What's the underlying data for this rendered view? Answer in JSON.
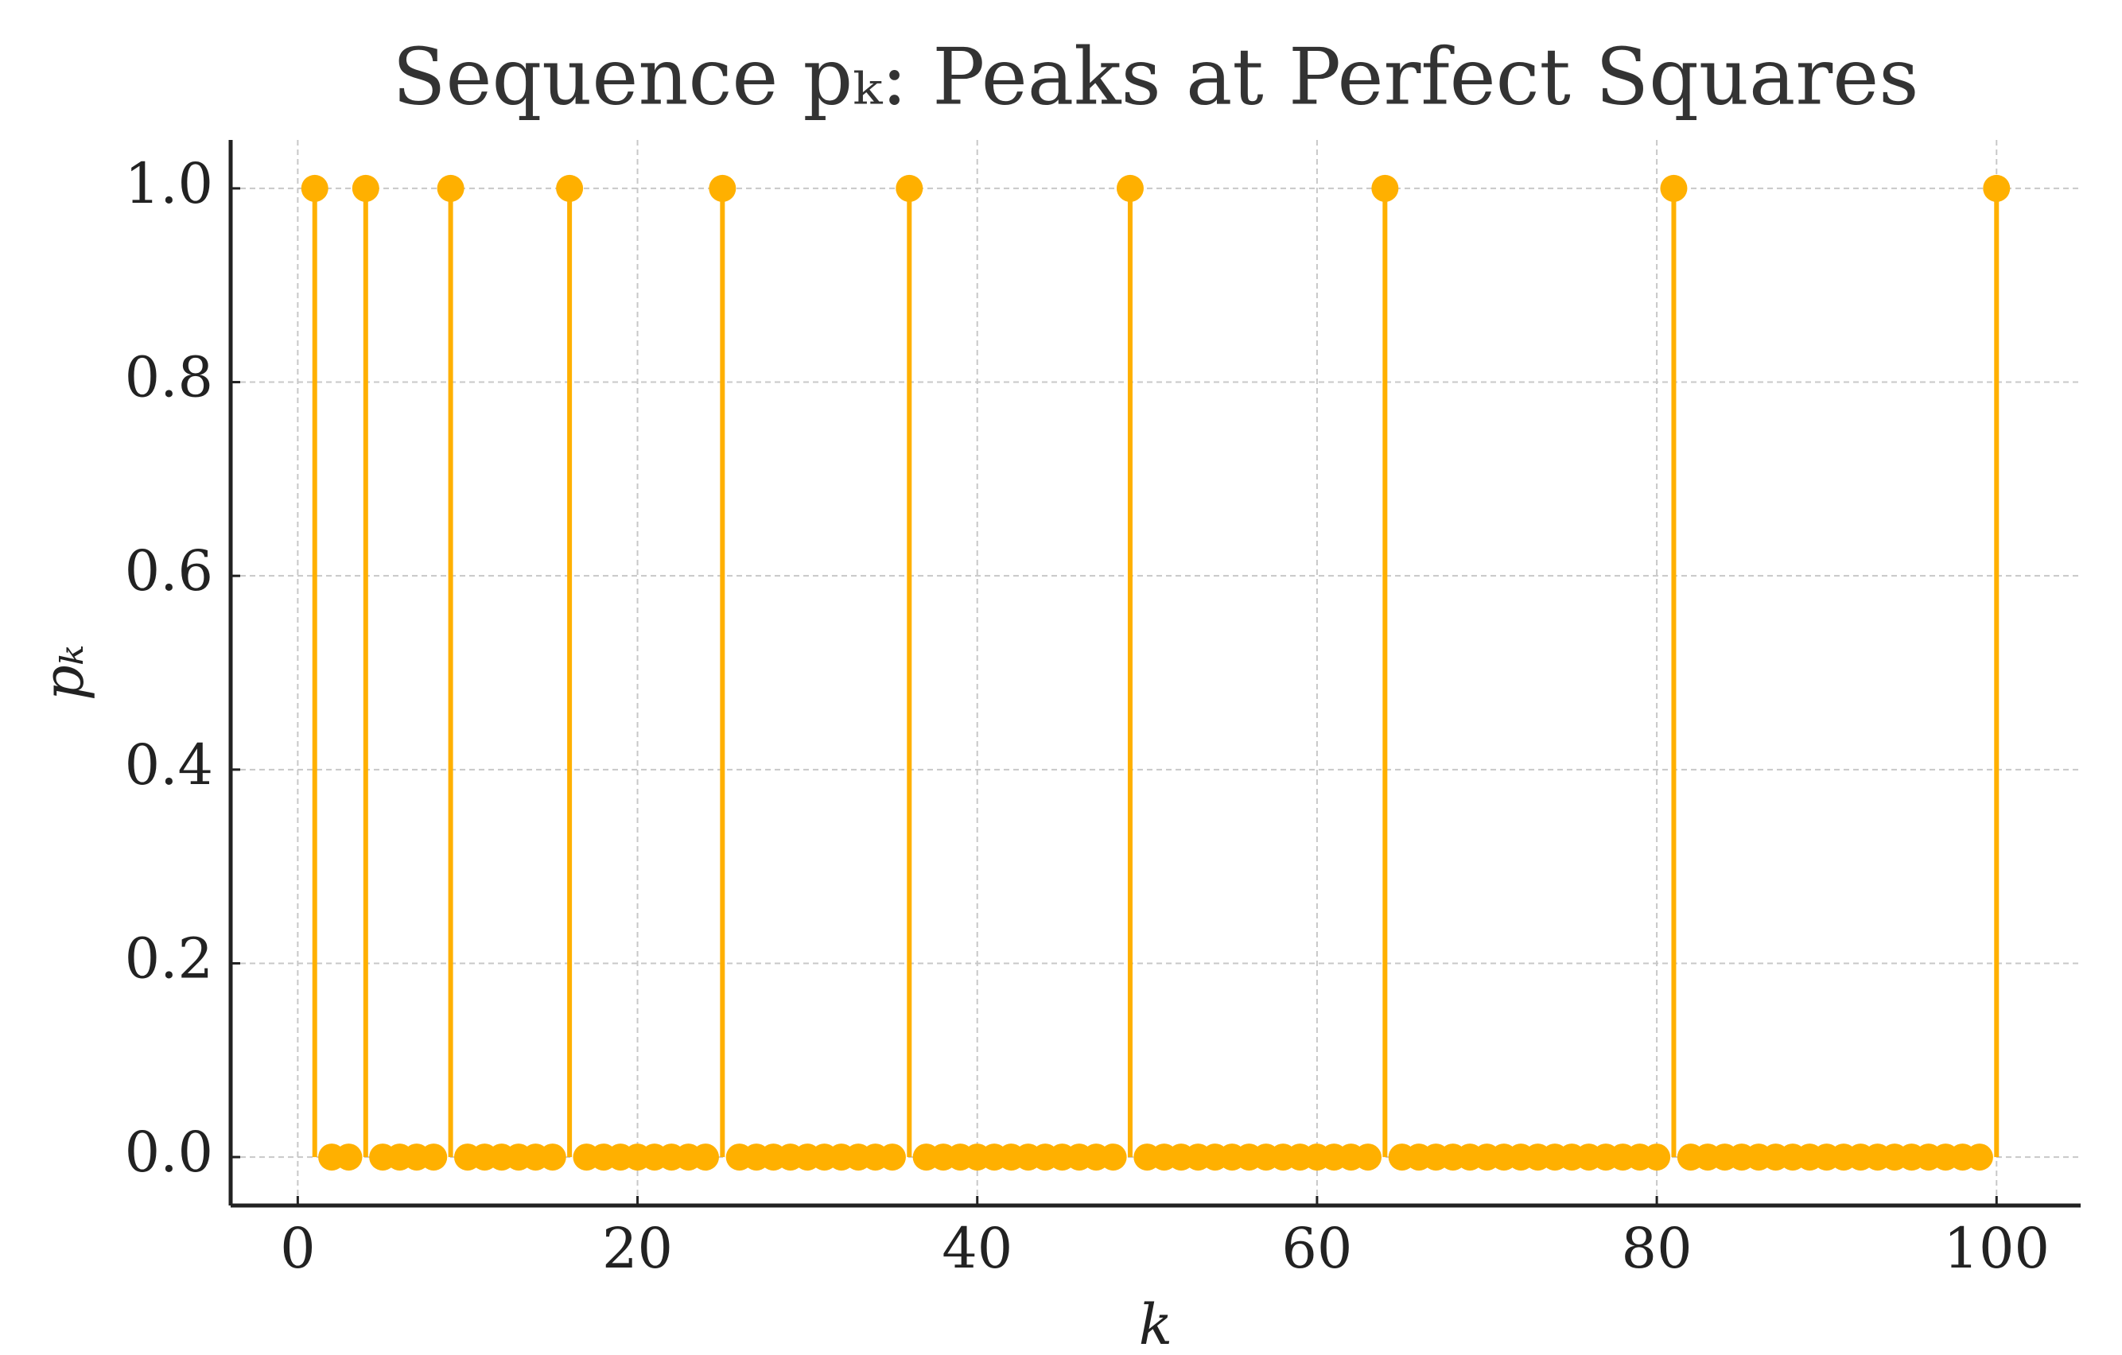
{
  "chart_data": {
    "type": "stem",
    "title": "Sequence pₖ: Peaks at Perfect Squares",
    "xlabel": "k",
    "ylabel": "pₖ",
    "color": "#ffb000",
    "x": [
      1,
      2,
      3,
      4,
      5,
      6,
      7,
      8,
      9,
      10,
      11,
      12,
      13,
      14,
      15,
      16,
      17,
      18,
      19,
      20,
      21,
      22,
      23,
      24,
      25,
      26,
      27,
      28,
      29,
      30,
      31,
      32,
      33,
      34,
      35,
      36,
      37,
      38,
      39,
      40,
      41,
      42,
      43,
      44,
      45,
      46,
      47,
      48,
      49,
      50,
      51,
      52,
      53,
      54,
      55,
      56,
      57,
      58,
      59,
      60,
      61,
      62,
      63,
      64,
      65,
      66,
      67,
      68,
      69,
      70,
      71,
      72,
      73,
      74,
      75,
      76,
      77,
      78,
      79,
      80,
      81,
      82,
      83,
      84,
      85,
      86,
      87,
      88,
      89,
      90,
      91,
      92,
      93,
      94,
      95,
      96,
      97,
      98,
      99,
      100
    ],
    "values": [
      1,
      0,
      0,
      1,
      0,
      0,
      0,
      0,
      1,
      0,
      0,
      0,
      0,
      0,
      0,
      1,
      0,
      0,
      0,
      0,
      0,
      0,
      0,
      0,
      1,
      0,
      0,
      0,
      0,
      0,
      0,
      0,
      0,
      0,
      0,
      1,
      0,
      0,
      0,
      0,
      0,
      0,
      0,
      0,
      0,
      0,
      0,
      0,
      1,
      0,
      0,
      0,
      0,
      0,
      0,
      0,
      0,
      0,
      0,
      0,
      0,
      0,
      0,
      1,
      0,
      0,
      0,
      0,
      0,
      0,
      0,
      0,
      0,
      0,
      0,
      0,
      0,
      0,
      0,
      0,
      1,
      0,
      0,
      0,
      0,
      0,
      0,
      0,
      0,
      0,
      0,
      0,
      0,
      0,
      0,
      0,
      0,
      0,
      0,
      1
    ],
    "xlim": [
      -3.95,
      104.95
    ],
    "ylim": [
      -0.05,
      1.05
    ],
    "xticks": [
      0,
      20,
      40,
      60,
      80,
      100
    ],
    "yticks": [
      {
        "value": 0,
        "label": "0.0"
      },
      {
        "value": 0.2,
        "label": "0.2"
      },
      {
        "value": 0.4,
        "label": "0.4"
      },
      {
        "value": 0.6,
        "label": "0.6"
      },
      {
        "value": 0.8,
        "label": "0.8"
      },
      {
        "value": 1,
        "label": "1.0"
      }
    ],
    "grid": true
  }
}
